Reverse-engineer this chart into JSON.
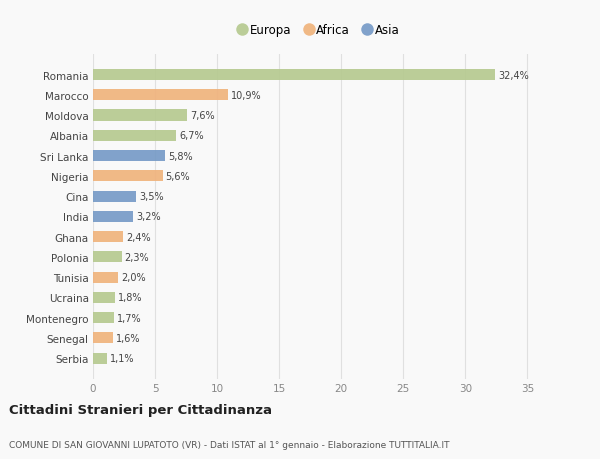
{
  "countries": [
    "Romania",
    "Marocco",
    "Moldova",
    "Albania",
    "Sri Lanka",
    "Nigeria",
    "Cina",
    "India",
    "Ghana",
    "Polonia",
    "Tunisia",
    "Ucraina",
    "Montenegro",
    "Senegal",
    "Serbia"
  ],
  "values": [
    32.4,
    10.9,
    7.6,
    6.7,
    5.8,
    5.6,
    3.5,
    3.2,
    2.4,
    2.3,
    2.0,
    1.8,
    1.7,
    1.6,
    1.1
  ],
  "labels": [
    "32,4%",
    "10,9%",
    "7,6%",
    "6,7%",
    "5,8%",
    "5,6%",
    "3,5%",
    "3,2%",
    "2,4%",
    "2,3%",
    "2,0%",
    "1,8%",
    "1,7%",
    "1,6%",
    "1,1%"
  ],
  "continents": [
    "Europa",
    "Africa",
    "Europa",
    "Europa",
    "Asia",
    "Africa",
    "Asia",
    "Asia",
    "Africa",
    "Europa",
    "Africa",
    "Europa",
    "Europa",
    "Africa",
    "Europa"
  ],
  "colors": {
    "Europa": "#b5c98e",
    "Africa": "#f0b27a",
    "Asia": "#7499c6"
  },
  "background_color": "#f9f9f9",
  "grid_color": "#e0e0e0",
  "title": "Cittadini Stranieri per Cittadinanza",
  "subtitle": "COMUNE DI SAN GIOVANNI LUPATOTO (VR) - Dati ISTAT al 1° gennaio - Elaborazione TUTTITALIA.IT",
  "xlim": [
    0,
    36.5
  ],
  "xticks": [
    0,
    5,
    10,
    15,
    20,
    25,
    30,
    35
  ],
  "bar_height": 0.55
}
